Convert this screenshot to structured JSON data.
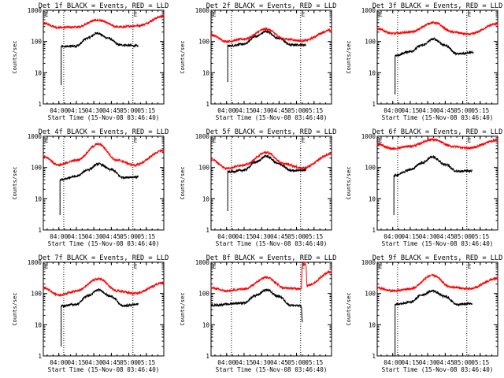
{
  "chart_data": [
    {
      "type": "line",
      "title": "Det 1f BLACK = Events, RED = LLD",
      "xlabel": "Start Time (15-Nov-08 03:46:40)",
      "ylabel": "Counts/sec",
      "yscale": "log",
      "ylim": [
        1,
        1000
      ],
      "yticks": [
        "1",
        "10",
        "100",
        "1000"
      ],
      "xticks": [
        "04:00",
        "04:15",
        "04:30",
        "04:45",
        "05:00",
        "05:15"
      ],
      "xlim": [
        "03:46:40",
        "05:30:00"
      ],
      "vlines": [
        "04:04:10",
        "05:03:30"
      ],
      "corner_marks": [
        "E",
        "E"
      ],
      "series": [
        {
          "color": "#000000",
          "start": "04:02:00",
          "end": "05:08:00",
          "onset_from": 4,
          "values": [
            {
              "t": "04:02",
              "v": 68
            },
            {
              "t": "04:15",
              "v": 72
            },
            {
              "t": "04:25",
              "v": 130
            },
            {
              "t": "04:33",
              "v": 185
            },
            {
              "t": "04:42",
              "v": 130
            },
            {
              "t": "04:52",
              "v": 78
            },
            {
              "t": "05:08",
              "v": 72
            }
          ]
        },
        {
          "color": "#ff0000",
          "start": "03:46:40",
          "end": "05:30:00",
          "values": [
            {
              "t": "03:47",
              "v": 380
            },
            {
              "t": "04:00",
              "v": 280
            },
            {
              "t": "04:15",
              "v": 290
            },
            {
              "t": "04:33",
              "v": 480
            },
            {
              "t": "04:52",
              "v": 290
            },
            {
              "t": "05:08",
              "v": 320
            },
            {
              "t": "05:30",
              "v": 640
            }
          ]
        }
      ]
    },
    {
      "type": "line",
      "title": "Det 2f BLACK = Events, RED = LLD",
      "xlabel": "Start Time (15-Nov-08 03:46:40)",
      "ylabel": "Counts/sec",
      "yscale": "log",
      "ylim": [
        1,
        1000
      ],
      "yticks": [
        "1",
        "10",
        "100",
        "1000"
      ],
      "xticks": [
        "04:00",
        "04:15",
        "04:30",
        "04:45",
        "05:00",
        "05:15"
      ],
      "xlim": [
        "03:46:40",
        "05:30:00"
      ],
      "vlines": [
        "04:04:10",
        "05:03:30"
      ],
      "corner_marks": [
        "E",
        "E"
      ],
      "series": [
        {
          "color": "#000000",
          "start": "04:01:00",
          "end": "05:08:00",
          "onset_from": 5,
          "values": [
            {
              "t": "04:01",
              "v": 72
            },
            {
              "t": "04:15",
              "v": 82
            },
            {
              "t": "04:25",
              "v": 145
            },
            {
              "t": "04:34",
              "v": 210
            },
            {
              "t": "04:45",
              "v": 125
            },
            {
              "t": "04:55",
              "v": 78
            },
            {
              "t": "05:08",
              "v": 78
            }
          ]
        },
        {
          "color": "#ff0000",
          "start": "03:46:40",
          "end": "05:30:00",
          "values": [
            {
              "t": "03:47",
              "v": 160
            },
            {
              "t": "04:00",
              "v": 100
            },
            {
              "t": "04:15",
              "v": 120
            },
            {
              "t": "04:34",
              "v": 250
            },
            {
              "t": "04:50",
              "v": 120
            },
            {
              "t": "05:05",
              "v": 105
            },
            {
              "t": "05:30",
              "v": 230
            }
          ]
        }
      ]
    },
    {
      "type": "line",
      "title": "Det 3f BLACK = Events, RED = LLD",
      "xlabel": "Start Time (15-Nov-08 03:46:40)",
      "ylabel": "Counts/sec",
      "yscale": "log",
      "ylim": [
        1,
        1000
      ],
      "yticks": [
        "1",
        "10",
        "100",
        "1000"
      ],
      "xticks": [
        "04:00",
        "04:15",
        "04:30",
        "04:45",
        "05:00",
        "05:15"
      ],
      "xlim": [
        "03:46:40",
        "05:30:00"
      ],
      "vlines": [
        "04:04:10",
        "05:03:30"
      ],
      "corner_marks": [
        "E",
        "E"
      ],
      "series": [
        {
          "color": "#000000",
          "start": "04:02:00",
          "end": "05:09:00",
          "onset_from": 2,
          "values": [
            {
              "t": "04:02",
              "v": 35
            },
            {
              "t": "04:15",
              "v": 48
            },
            {
              "t": "04:25",
              "v": 75
            },
            {
              "t": "04:35",
              "v": 120
            },
            {
              "t": "04:45",
              "v": 75
            },
            {
              "t": "04:55",
              "v": 40
            },
            {
              "t": "05:09",
              "v": 45
            }
          ]
        },
        {
          "color": "#ff0000",
          "start": "03:46:40",
          "end": "05:30:00",
          "values": [
            {
              "t": "03:47",
              "v": 250
            },
            {
              "t": "04:00",
              "v": 180
            },
            {
              "t": "04:15",
              "v": 200
            },
            {
              "t": "04:35",
              "v": 400
            },
            {
              "t": "04:52",
              "v": 200
            },
            {
              "t": "05:05",
              "v": 170
            },
            {
              "t": "05:30",
              "v": 370
            }
          ]
        }
      ]
    },
    {
      "type": "line",
      "title": "Det 4f BLACK = Events, RED = LLD",
      "xlabel": "Start Time (15-Nov-08 03:46:40)",
      "ylabel": "Counts/sec",
      "yscale": "log",
      "ylim": [
        1,
        1000
      ],
      "yticks": [
        "1",
        "10",
        "100",
        "1000"
      ],
      "xticks": [
        "04:00",
        "04:15",
        "04:30",
        "04:45",
        "05:00",
        "05:15"
      ],
      "xlim": [
        "03:46:40",
        "05:30:00"
      ],
      "vlines": [
        "04:04:10",
        "05:03:30"
      ],
      "corner_marks": [
        "E",
        "E"
      ],
      "series": [
        {
          "color": "#000000",
          "start": "04:01:00",
          "end": "05:08:00",
          "onset_from": 3,
          "values": [
            {
              "t": "04:01",
              "v": 40
            },
            {
              "t": "04:15",
              "v": 52
            },
            {
              "t": "04:25",
              "v": 85
            },
            {
              "t": "04:34",
              "v": 130
            },
            {
              "t": "04:45",
              "v": 85
            },
            {
              "t": "04:55",
              "v": 48
            },
            {
              "t": "05:08",
              "v": 50
            }
          ]
        },
        {
          "color": "#ff0000",
          "start": "03:46:40",
          "end": "05:30:00",
          "values": [
            {
              "t": "03:47",
              "v": 220
            },
            {
              "t": "04:00",
              "v": 120
            },
            {
              "t": "04:15",
              "v": 170
            },
            {
              "t": "04:34",
              "v": 560
            },
            {
              "t": "04:50",
              "v": 170
            },
            {
              "t": "05:05",
              "v": 120
            },
            {
              "t": "05:30",
              "v": 350
            }
          ]
        }
      ]
    },
    {
      "type": "line",
      "title": "Det 5f BLACK = Events, RED = LLD",
      "xlabel": "Start Time (15-Nov-08 03:46:40)",
      "ylabel": "Counts/sec",
      "yscale": "log",
      "ylim": [
        1,
        1000
      ],
      "yticks": [
        "1",
        "10",
        "100",
        "1000"
      ],
      "xticks": [
        "04:00",
        "04:15",
        "04:30",
        "04:45",
        "05:00",
        "05:15"
      ],
      "xlim": [
        "03:46:40",
        "05:30:00"
      ],
      "vlines": [
        "04:04:10",
        "05:03:30"
      ],
      "corner_marks": [
        "E",
        "E"
      ],
      "series": [
        {
          "color": "#000000",
          "start": "04:01:00",
          "end": "05:08:00",
          "onset_from": 4,
          "values": [
            {
              "t": "04:01",
              "v": 72
            },
            {
              "t": "04:15",
              "v": 82
            },
            {
              "t": "04:25",
              "v": 150
            },
            {
              "t": "04:34",
              "v": 230
            },
            {
              "t": "04:45",
              "v": 130
            },
            {
              "t": "04:55",
              "v": 80
            },
            {
              "t": "05:08",
              "v": 82
            }
          ]
        },
        {
          "color": "#ff0000",
          "start": "03:46:40",
          "end": "05:30:00",
          "values": [
            {
              "t": "03:47",
              "v": 180
            },
            {
              "t": "04:00",
              "v": 95
            },
            {
              "t": "04:15",
              "v": 120
            },
            {
              "t": "04:34",
              "v": 300
            },
            {
              "t": "04:50",
              "v": 130
            },
            {
              "t": "05:05",
              "v": 95
            },
            {
              "t": "05:30",
              "v": 270
            }
          ]
        }
      ]
    },
    {
      "type": "line",
      "title": "Det 6f BLACK = Events, RED = LLD",
      "xlabel": "Start Time (15-Nov-08 03:46:40)",
      "ylabel": "Counts/sec",
      "yscale": "log",
      "ylim": [
        1,
        1000
      ],
      "yticks": [
        "1",
        "10",
        "100",
        "1000"
      ],
      "xticks": [
        "04:00",
        "04:15",
        "04:30",
        "04:45",
        "05:00",
        "05:15"
      ],
      "xlim": [
        "03:46:40",
        "05:30:00"
      ],
      "vlines": [
        "04:04:10",
        "05:03:30"
      ],
      "corner_marks": [
        "E",
        "E"
      ],
      "series": [
        {
          "color": "#000000",
          "start": "04:01:00",
          "end": "05:08:00",
          "onset_from": 3,
          "values": [
            {
              "t": "04:01",
              "v": 55
            },
            {
              "t": "04:15",
              "v": 85
            },
            {
              "t": "04:25",
              "v": 140
            },
            {
              "t": "04:34",
              "v": 220
            },
            {
              "t": "04:45",
              "v": 125
            },
            {
              "t": "04:55",
              "v": 75
            },
            {
              "t": "05:08",
              "v": 78
            }
          ]
        },
        {
          "color": "#ff0000",
          "start": "03:46:40",
          "end": "05:30:00",
          "values": [
            {
              "t": "03:47",
              "v": 550
            },
            {
              "t": "04:00",
              "v": 400
            },
            {
              "t": "04:15",
              "v": 480
            },
            {
              "t": "04:34",
              "v": 780
            },
            {
              "t": "04:52",
              "v": 470
            },
            {
              "t": "05:05",
              "v": 420
            },
            {
              "t": "05:30",
              "v": 750
            }
          ]
        }
      ]
    },
    {
      "type": "line",
      "title": "Det 7f BLACK = Events, RED = LLD",
      "xlabel": "Start Time (15-Nov-08 03:46:40)",
      "ylabel": "Counts/sec",
      "yscale": "log",
      "ylim": [
        1,
        1000
      ],
      "yticks": [
        "1",
        "10",
        "100",
        "1000"
      ],
      "xticks": [
        "04:00",
        "04:15",
        "04:30",
        "04:45",
        "05:00",
        "05:15"
      ],
      "xlim": [
        "03:46:40",
        "05:30:00"
      ],
      "vlines": [
        "04:04:10",
        "05:03:30"
      ],
      "corner_marks": [
        "E",
        "E"
      ],
      "series": [
        {
          "color": "#000000",
          "start": "04:02:00",
          "end": "05:08:00",
          "onset_from": 2,
          "values": [
            {
              "t": "04:02",
              "v": 40
            },
            {
              "t": "04:15",
              "v": 45
            },
            {
              "t": "04:25",
              "v": 85
            },
            {
              "t": "04:34",
              "v": 130
            },
            {
              "t": "04:45",
              "v": 80
            },
            {
              "t": "04:55",
              "v": 40
            },
            {
              "t": "05:08",
              "v": 45
            }
          ]
        },
        {
          "color": "#ff0000",
          "start": "03:46:40",
          "end": "05:30:00",
          "values": [
            {
              "t": "03:47",
              "v": 150
            },
            {
              "t": "04:00",
              "v": 90
            },
            {
              "t": "04:15",
              "v": 120
            },
            {
              "t": "04:34",
              "v": 300
            },
            {
              "t": "04:50",
              "v": 120
            },
            {
              "t": "05:05",
              "v": 100
            },
            {
              "t": "05:30",
              "v": 220
            }
          ]
        }
      ]
    },
    {
      "type": "line",
      "title": "Det 8f BLACK = Events, RED = LLD",
      "xlabel": "Start Time (15-Nov-08 03:46:40)",
      "ylabel": "Counts/sec",
      "yscale": "log",
      "ylim": [
        1,
        1000
      ],
      "yticks": [
        "1",
        "10",
        "100",
        "1000"
      ],
      "xticks": [
        "04:00",
        "04:15",
        "04:30",
        "04:45",
        "05:00",
        "05:15"
      ],
      "xlim": [
        "03:46:40",
        "05:30:00"
      ],
      "vlines": [
        "04:04:10",
        "05:03:30"
      ],
      "corner_marks": [
        "E",
        "E"
      ],
      "series": [
        {
          "color": "#000000",
          "start": "03:46:40",
          "end": "05:05:00",
          "values": [
            {
              "t": "03:47",
              "v": 42
            },
            {
              "t": "04:15",
              "v": 50
            },
            {
              "t": "04:25",
              "v": 85
            },
            {
              "t": "04:34",
              "v": 130
            },
            {
              "t": "04:45",
              "v": 80
            },
            {
              "t": "04:55",
              "v": 42
            },
            {
              "t": "05:04",
              "v": 40
            },
            {
              "t": "05:05",
              "v": 12
            }
          ]
        },
        {
          "color": "#ff0000",
          "start": "03:46:40",
          "end": "05:30:00",
          "values": [
            {
              "t": "03:47",
              "v": 150
            },
            {
              "t": "04:00",
              "v": 120
            },
            {
              "t": "04:15",
              "v": 140
            },
            {
              "t": "04:34",
              "v": 330
            },
            {
              "t": "04:50",
              "v": 150
            },
            {
              "t": "05:04",
              "v": 140
            },
            {
              "t": "05:05",
              "v": 900
            },
            {
              "t": "05:08",
              "v": 900
            },
            {
              "t": "05:09",
              "v": 180
            },
            {
              "t": "05:30",
              "v": 500
            }
          ]
        }
      ]
    },
    {
      "type": "line",
      "title": "Det 9f BLACK = Events, RED = LLD",
      "xlabel": "Start Time (15-Nov-08 03:46:40)",
      "ylabel": "Counts/sec",
      "yscale": "log",
      "ylim": [
        1,
        1000
      ],
      "yticks": [
        "1",
        "10",
        "100",
        "1000"
      ],
      "xticks": [
        "04:00",
        "04:15",
        "04:30",
        "04:45",
        "05:00",
        "05:15"
      ],
      "xlim": [
        "03:46:40",
        "05:30:00"
      ],
      "vlines": [
        "04:04:10",
        "05:03:30"
      ],
      "corner_marks": [
        "E",
        "E"
      ],
      "series": [
        {
          "color": "#000000",
          "start": "04:02:00",
          "end": "05:08:00",
          "onset_from": 1,
          "values": [
            {
              "t": "04:02",
              "v": 45
            },
            {
              "t": "04:15",
              "v": 52
            },
            {
              "t": "04:25",
              "v": 90
            },
            {
              "t": "04:34",
              "v": 120
            },
            {
              "t": "04:45",
              "v": 80
            },
            {
              "t": "04:55",
              "v": 45
            },
            {
              "t": "05:08",
              "v": 48
            }
          ]
        },
        {
          "color": "#ff0000",
          "start": "03:46:40",
          "end": "05:30:00",
          "values": [
            {
              "t": "03:47",
              "v": 150
            },
            {
              "t": "04:00",
              "v": 120
            },
            {
              "t": "04:15",
              "v": 140
            },
            {
              "t": "04:34",
              "v": 380
            },
            {
              "t": "04:50",
              "v": 160
            },
            {
              "t": "05:05",
              "v": 140
            },
            {
              "t": "05:30",
              "v": 300
            }
          ]
        }
      ]
    }
  ]
}
